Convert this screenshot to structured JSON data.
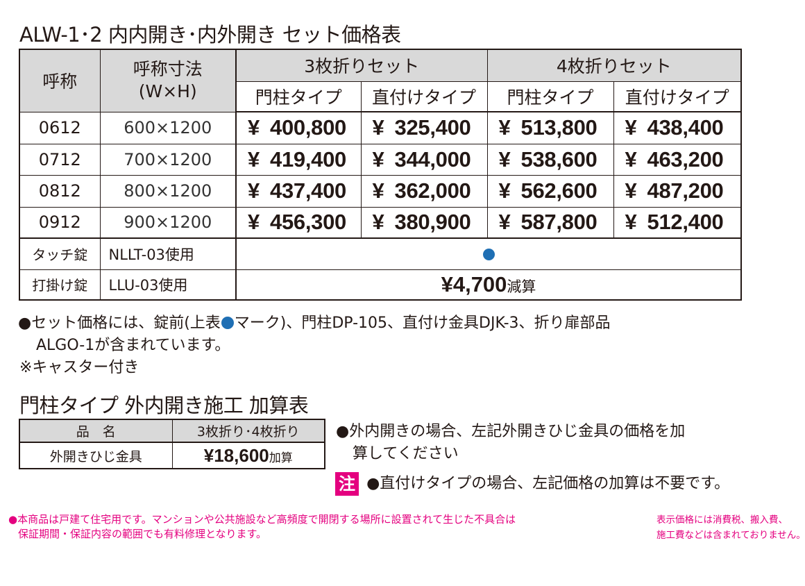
{
  "price_table": {
    "title": "ALW-1･2 内内開き･内外開き セット価格表",
    "header": {
      "name": "呼称",
      "size_line1": "呼称寸法",
      "size_line2": "(W×H)",
      "group_3": "3枚折りセット",
      "group_4": "4枚折りセット",
      "post_type": "門柱タイプ",
      "direct_type": "直付けタイプ"
    },
    "currency": "¥",
    "rows": [
      {
        "code": "0612",
        "size": "600×1200",
        "prices": [
          "400,800",
          "325,400",
          "513,800",
          "438,400"
        ]
      },
      {
        "code": "0712",
        "size": "700×1200",
        "prices": [
          "419,400",
          "344,000",
          "538,600",
          "463,200"
        ]
      },
      {
        "code": "0812",
        "size": "800×1200",
        "prices": [
          "437,400",
          "362,000",
          "562,600",
          "487,200"
        ]
      },
      {
        "code": "0912",
        "size": "900×1200",
        "prices": [
          "456,300",
          "380,900",
          "587,800",
          "512,400"
        ]
      }
    ],
    "options": [
      {
        "name": "タッチ錠",
        "model": "NLLT-03使用",
        "dot_color": "#1f6fb4"
      },
      {
        "name": "打掛け錠",
        "model": "LLU-03使用",
        "amount": "¥4,700",
        "suffix": "減算"
      }
    ]
  },
  "notes": {
    "line1_a": "●セット価格には、錠前(上表",
    "line1_b": "マーク)、門柱DP-105、直付け金具DJK-3、折り扉部品",
    "line2": "ALGO-1が含まれています。",
    "line3": "※キャスター付き"
  },
  "add_table": {
    "title": "門柱タイプ 外内開き施工 加算表",
    "header": {
      "item": "品　名",
      "type": "3枚折り･4枚折り"
    },
    "row": {
      "item": "外開きひじ金具",
      "price": "¥18,600",
      "suffix": "加算"
    }
  },
  "add_notes": {
    "line1": "●外内開きの場合、左記外開きひじ金具の価格を加",
    "line2": "算してください",
    "caution_badge": "注",
    "caution_text": "●直付けタイプの場合、左記価格の加算は不要です。"
  },
  "footer": {
    "left_line1": "●本商品は戸建て住宅用です。マンションや公共施設など高頻度で開閉する場所に設置されて生じた不具合は",
    "left_line2": "保証期間・保証内容の範囲でも有料修理となります。",
    "right_line1": "表示価格には消費税、搬入費、",
    "right_line2": "施工費などは含まれておりません。"
  },
  "colors": {
    "accent_blue": "#1f6fb4",
    "header_gray": "#d9d9d9",
    "caution_pink": "#e4007f",
    "text": "#231815"
  }
}
